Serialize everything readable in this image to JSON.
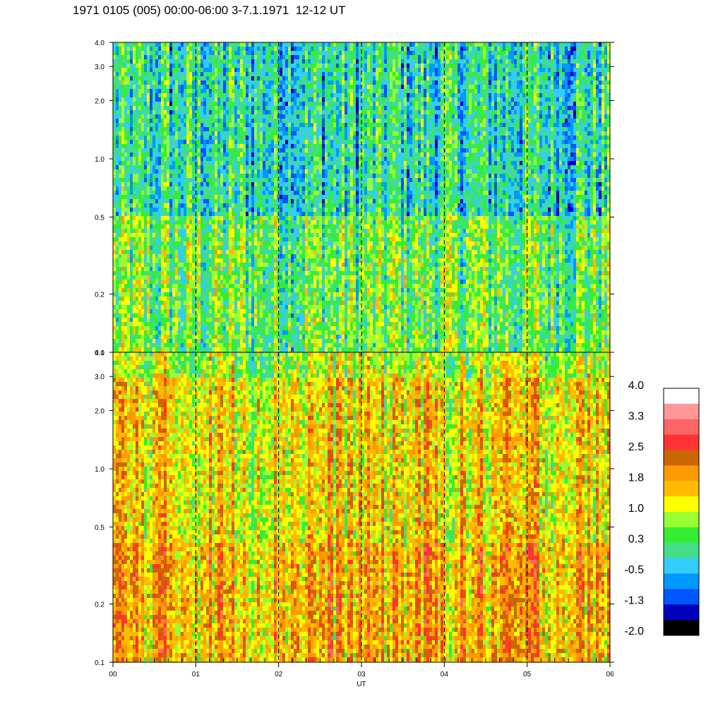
{
  "title": "1971 0105 (005) 00:00-06:00 3-7.1.1971  12-12 UT",
  "chart_data": {
    "type": "heatmap",
    "title": "1971 0105 (005) 00:00-06:00 3-7.1.1971  12-12 UT",
    "xlabel": "UT",
    "x_ticks": [
      "00",
      "01",
      "02",
      "03",
      "04",
      "05",
      "06"
    ],
    "xlim": [
      0,
      6
    ],
    "panels": [
      {
        "yscale": "log",
        "ylim": [
          0.1,
          4.0
        ],
        "y_ticks": [
          0.1,
          0.2,
          0.5,
          1.0,
          2.0,
          3.0,
          4.0
        ],
        "y_tick_labels": [
          "0.1",
          "0.2",
          "0.5",
          "1.0",
          "2.0",
          "3.0",
          "4.0"
        ],
        "typical_level": 0.3
      },
      {
        "yscale": "log",
        "ylim": [
          0.1,
          4.0
        ],
        "y_ticks": [
          0.1,
          0.2,
          0.5,
          1.0,
          2.0,
          3.0,
          4.0
        ],
        "y_tick_labels": [
          "0.1",
          "0.2",
          "0.5",
          "1.0",
          "2.0",
          "3.0",
          "4.0"
        ],
        "typical_level": 1.5
      }
    ],
    "hour_markers": [
      1,
      2,
      3,
      4,
      5
    ],
    "colorbar": {
      "min": -2.0,
      "max": 4.0,
      "tick_labels": [
        "4.0",
        "3.3",
        "2.5",
        "1.8",
        "1.0",
        "0.3",
        "-0.5",
        "-1.3",
        "-2.0"
      ],
      "colors_top_to_bottom": [
        "#ffffff",
        "#ff9999",
        "#ff6666",
        "#ff3333",
        "#cc6600",
        "#ff9900",
        "#ffbb00",
        "#ffff00",
        "#99ff33",
        "#33ee33",
        "#44dd88",
        "#33ccff",
        "#0099ff",
        "#0055ff",
        "#0000bb",
        "#000000"
      ]
    }
  }
}
